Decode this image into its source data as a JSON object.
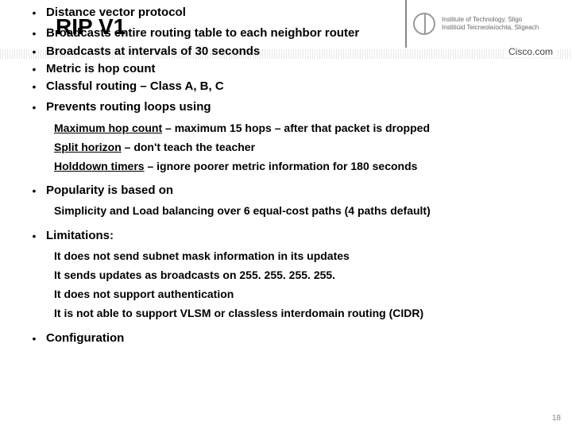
{
  "header": {
    "org_line1": "Institute of Technology, Sligo",
    "org_line2": "Institiúid Teicneolaíochta, Sligeach",
    "brand": "Cisco.com"
  },
  "title": "RIP V1",
  "bullets": {
    "b1": "Distance vector protocol",
    "b2": "Broadcasts entire routing table to each neighbor router",
    "b3": "Broadcasts at intervals of 30 seconds",
    "b4": "Metric is hop count",
    "b5": "Classful routing – Class A, B, C",
    "b6": "Prevents routing loops using",
    "b7": "Popularity is based on",
    "b8": "Limitations:",
    "b9": "Configuration"
  },
  "sub6": {
    "s1a": "Maximum hop count",
    "s1b": " – maximum 15 hops – after that packet is dropped",
    "s2a": "Split horizon",
    "s2b": " – don't teach the teacher",
    "s3a": "Holddown timers",
    "s3b": " – ignore poorer metric information for 180 seconds"
  },
  "sub7": {
    "s1": "Simplicity and Load balancing over 6 equal-cost paths (4 paths default)"
  },
  "sub8": {
    "s1": "It does not send subnet mask information in its updates",
    "s2": "It sends updates as broadcasts on 255. 255. 255. 255.",
    "s3": "It does not support authentication",
    "s4": "It is not able to support VLSM or classless interdomain routing (CIDR)"
  },
  "pagenum": "18"
}
